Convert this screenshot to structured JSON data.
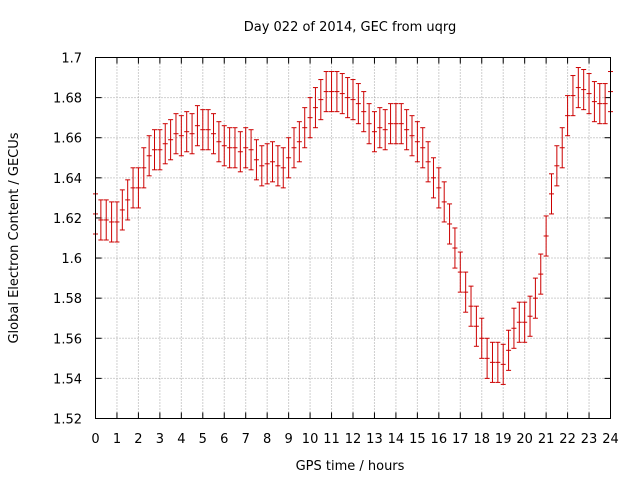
{
  "chart_data": {
    "type": "scatter",
    "title": "Day 022 of 2014, GEC from uqrg",
    "xlabel": "GPS time / hours",
    "ylabel": "Global Electron Content / GECUs",
    "xlim": [
      0,
      24
    ],
    "ylim": [
      1.52,
      1.7
    ],
    "xticks": [
      "0",
      "1",
      "2",
      "3",
      "4",
      "5",
      "6",
      "7",
      "8",
      "9",
      "10",
      "11",
      "12",
      "13",
      "14",
      "15",
      "16",
      "17",
      "18",
      "19",
      "20",
      "21",
      "22",
      "23",
      "24"
    ],
    "yticks": [
      "1.52",
      "1.54",
      "1.56",
      "1.58",
      "1.6",
      "1.62",
      "1.64",
      "1.66",
      "1.68",
      "1.7"
    ],
    "grid": true,
    "series": [
      {
        "name": "GEC",
        "color": "#cc0000",
        "error": 0.01,
        "x": [
          0.0,
          0.25,
          0.5,
          0.75,
          1.0,
          1.25,
          1.5,
          1.75,
          2.0,
          2.25,
          2.5,
          2.75,
          3.0,
          3.25,
          3.5,
          3.75,
          4.0,
          4.25,
          4.5,
          4.75,
          5.0,
          5.25,
          5.5,
          5.75,
          6.0,
          6.25,
          6.5,
          6.75,
          7.0,
          7.25,
          7.5,
          7.75,
          8.0,
          8.25,
          8.5,
          8.75,
          9.0,
          9.25,
          9.5,
          9.75,
          10.0,
          10.25,
          10.5,
          10.75,
          11.0,
          11.25,
          11.5,
          11.75,
          12.0,
          12.25,
          12.5,
          12.75,
          13.0,
          13.25,
          13.5,
          13.75,
          14.0,
          14.25,
          14.5,
          14.75,
          15.0,
          15.25,
          15.5,
          15.75,
          16.0,
          16.25,
          16.5,
          16.75,
          17.0,
          17.25,
          17.5,
          17.75,
          18.0,
          18.25,
          18.5,
          18.75,
          19.0,
          19.25,
          19.5,
          19.75,
          20.0,
          20.25,
          20.5,
          20.75,
          21.0,
          21.25,
          21.5,
          21.75,
          22.0,
          22.25,
          22.5,
          22.75,
          23.0,
          23.25,
          23.5,
          23.75,
          24.0
        ],
        "y": [
          1.622,
          1.619,
          1.619,
          1.618,
          1.618,
          1.624,
          1.629,
          1.635,
          1.635,
          1.645,
          1.651,
          1.654,
          1.654,
          1.657,
          1.659,
          1.662,
          1.661,
          1.663,
          1.662,
          1.666,
          1.664,
          1.664,
          1.662,
          1.658,
          1.656,
          1.655,
          1.655,
          1.653,
          1.655,
          1.654,
          1.649,
          1.646,
          1.647,
          1.648,
          1.646,
          1.645,
          1.65,
          1.655,
          1.658,
          1.665,
          1.67,
          1.675,
          1.679,
          1.683,
          1.683,
          1.683,
          1.682,
          1.68,
          1.679,
          1.677,
          1.673,
          1.667,
          1.663,
          1.665,
          1.664,
          1.667,
          1.667,
          1.667,
          1.664,
          1.661,
          1.658,
          1.655,
          1.648,
          1.64,
          1.635,
          1.628,
          1.617,
          1.605,
          1.593,
          1.583,
          1.576,
          1.566,
          1.56,
          1.55,
          1.548,
          1.548,
          1.547,
          1.554,
          1.565,
          1.568,
          1.568,
          1.571,
          1.58,
          1.592,
          1.611,
          1.632,
          1.646,
          1.655,
          1.671,
          1.681,
          1.685,
          1.684,
          1.682,
          1.678,
          1.677,
          1.677,
          1.683
        ]
      }
    ]
  }
}
